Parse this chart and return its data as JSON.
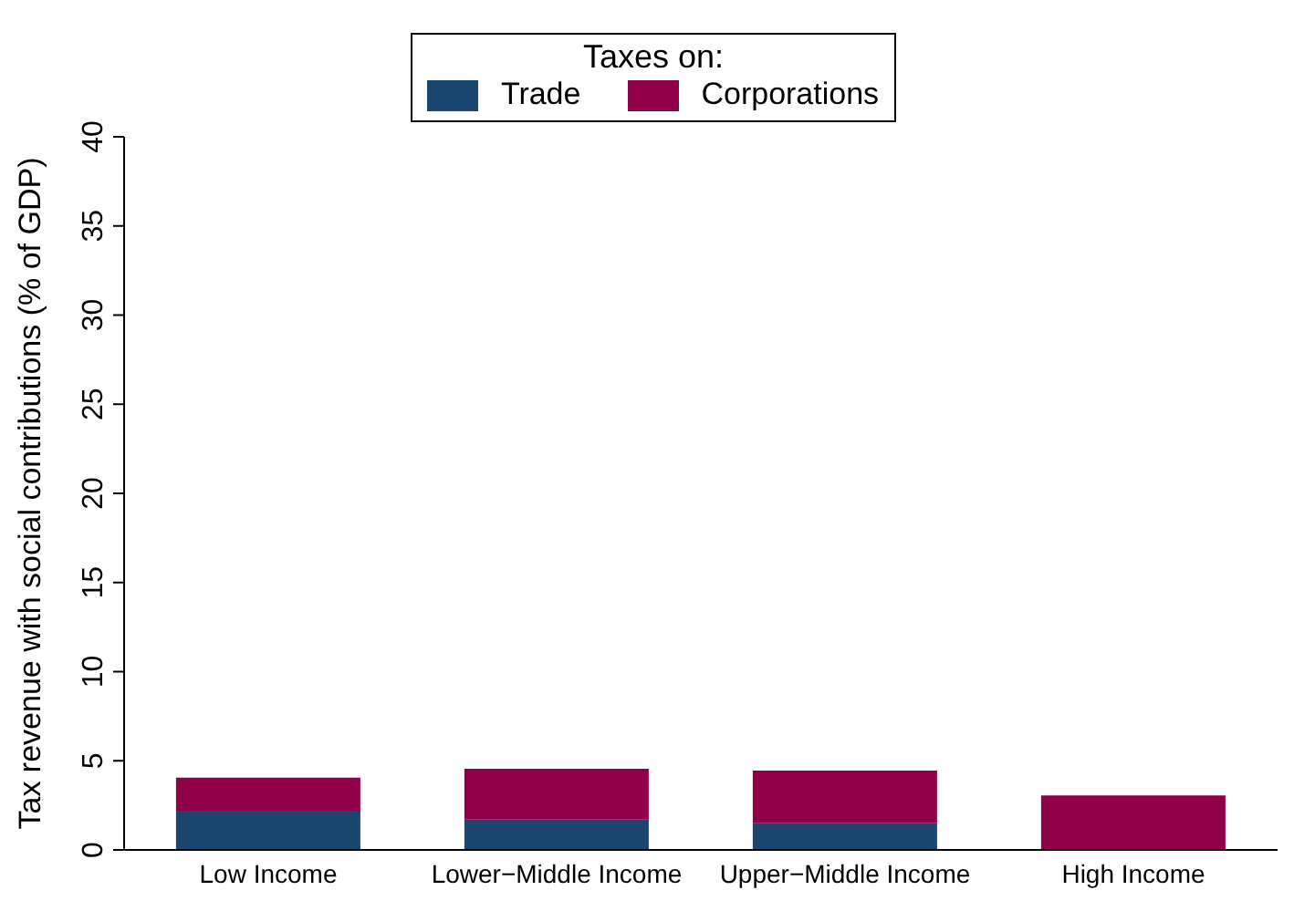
{
  "chart_data": {
    "type": "bar",
    "stacked": true,
    "ylabel": "Tax revenue with social contributions (% of GDP)",
    "legend_title": "Taxes on:",
    "legend": "top",
    "categories": [
      "Low Income",
      "Lower−Middle Income",
      "Upper−Middle Income",
      "High Income"
    ],
    "series": [
      {
        "name": "Trade",
        "color": "#1a466f",
        "values": [
          2.2,
          1.7,
          1.5,
          0
        ]
      },
      {
        "name": "Corporations",
        "color": "#900048",
        "values": [
          1.85,
          2.85,
          2.95,
          3.05
        ]
      }
    ],
    "ylim": [
      0,
      40
    ],
    "yticks": [
      0,
      5,
      10,
      15,
      20,
      25,
      30,
      35,
      40
    ],
    "grid": false
  }
}
